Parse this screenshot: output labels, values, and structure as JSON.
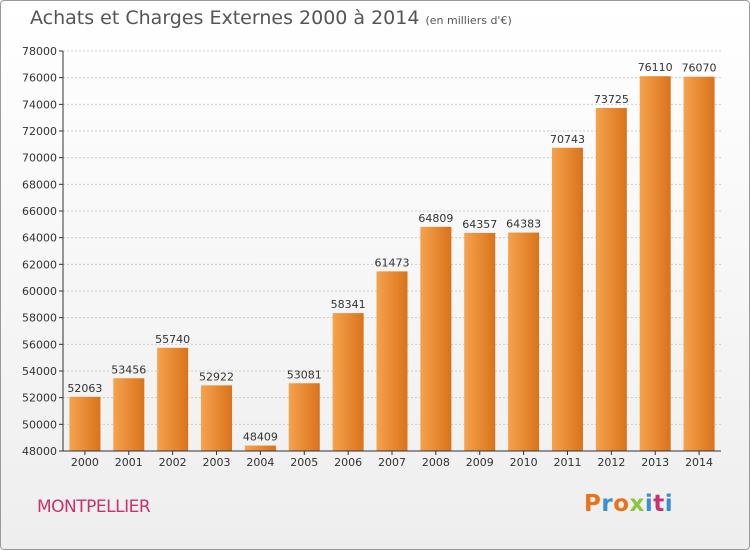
{
  "header": {
    "title": "Achats et Charges Externes 2000 à 2014",
    "subtitle": "(en milliers d'€)"
  },
  "footer": {
    "city": "MONTPELLIER",
    "logo": "Proxiti",
    "logo_colors": [
      "#e8731a",
      "#3a8fd0",
      "#e8731a",
      "#8dc63f",
      "#3a8fd0",
      "#c8326e",
      "#3a8fd0"
    ]
  },
  "colors": {
    "bar_light": "#f6a24d",
    "bar_dark": "#d9731b",
    "axis": "#333333",
    "grid": "#cccccc",
    "text": "#333333"
  },
  "chart_data": {
    "type": "bar",
    "title": "Achats et Charges Externes 2000 à 2014",
    "subtitle": "(en milliers d'€)",
    "xlabel": "",
    "ylabel": "",
    "categories": [
      "2000",
      "2001",
      "2002",
      "2003",
      "2004",
      "2005",
      "2006",
      "2007",
      "2008",
      "2009",
      "2010",
      "2011",
      "2012",
      "2013",
      "2014"
    ],
    "values": [
      52063,
      53456,
      55740,
      52922,
      48409,
      53081,
      58341,
      61473,
      64809,
      64357,
      64383,
      70743,
      73725,
      76110,
      76070
    ],
    "ylim": [
      48000,
      78000
    ],
    "yticks": [
      48000,
      50000,
      52000,
      54000,
      56000,
      58000,
      60000,
      62000,
      64000,
      66000,
      68000,
      70000,
      72000,
      74000,
      76000,
      78000
    ],
    "grid": "horizontal",
    "data_labels": true
  }
}
